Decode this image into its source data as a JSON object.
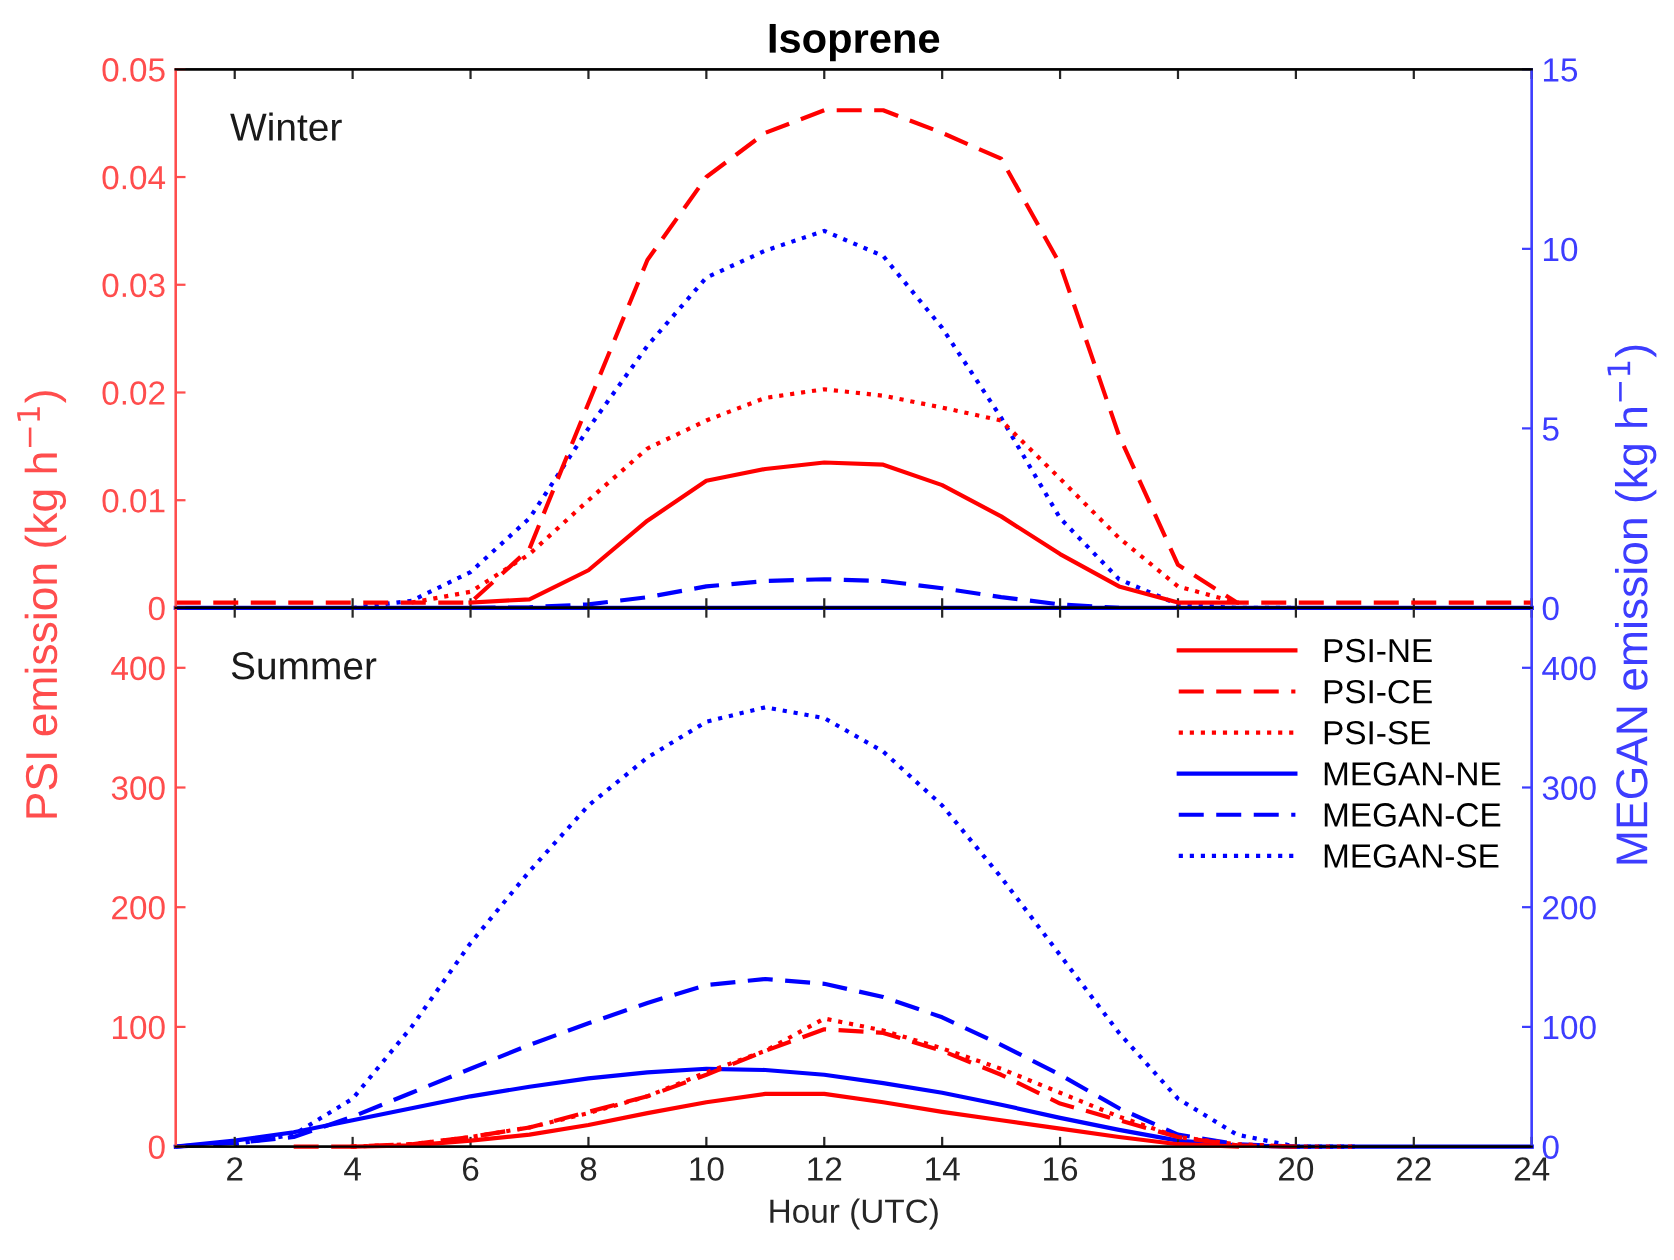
{
  "chart_data": [
    {
      "type": "line",
      "title": "Isoprene",
      "ylabel": "PSI emission (kg h$^{−1}$)",
      "y2label": "MEGAN emission (kg h$^{−1}$)",
      "annotations": [
        "Winter"
      ],
      "x": [
        1,
        2,
        3,
        4,
        5,
        6,
        7,
        8,
        9,
        10,
        11,
        12,
        13,
        14,
        15,
        16,
        17,
        18,
        19,
        20,
        21,
        22,
        23,
        24
      ],
      "xlim": [
        1,
        24
      ],
      "xticks": [
        2,
        4,
        6,
        8,
        10,
        12,
        14,
        16,
        18,
        20,
        22,
        24
      ],
      "ylim": [
        0,
        0.05
      ],
      "yticks": [
        0,
        0.01,
        0.02,
        0.03,
        0.04,
        0.05
      ],
      "y2lim": [
        0,
        15
      ],
      "y2ticks": [
        0,
        5,
        10,
        15
      ],
      "tick_labels": "y",
      "grid": false,
      "legend": false,
      "series": [
        {
          "color": "#ff0000",
          "line_style": "solid",
          "values": [
            null,
            null,
            null,
            null,
            null,
            0.0005,
            0.0008,
            0.0035,
            0.0081,
            0.0118,
            0.0129,
            0.0135,
            0.0133,
            0.0114,
            0.0085,
            0.005,
            0.002,
            0.0005,
            0.0005,
            null,
            null,
            null,
            null,
            null
          ]
        },
        {
          "color": "#ff0000",
          "line_style": "dashed",
          "values": [
            0.0005,
            0.0005,
            0.0005,
            0.0005,
            0.0005,
            0.0005,
            0.0055,
            0.019,
            0.0323,
            0.04,
            0.0441,
            0.0462,
            0.0462,
            0.0441,
            0.0417,
            0.0319,
            0.016,
            0.004,
            0.0005,
            0.0005,
            0.0005,
            0.0005,
            0.0005,
            0.0005
          ]
        },
        {
          "color": "#ff0000",
          "line_style": "dotted",
          "values": [
            null,
            null,
            null,
            null,
            0.0005,
            0.0015,
            0.005,
            0.01,
            0.0148,
            0.0174,
            0.0195,
            0.0203,
            0.0197,
            0.0186,
            0.0174,
            0.012,
            0.0065,
            0.002,
            0.0005,
            null,
            null,
            null,
            null,
            null
          ]
        },
        {
          "color": "#0000ff",
          "line_style": "solid",
          "axis": "y2",
          "values": [
            0,
            0,
            0,
            0,
            0,
            0,
            0,
            0,
            0,
            0,
            0,
            0,
            0,
            0,
            0,
            0,
            0,
            0,
            0,
            0,
            0,
            0,
            0,
            0
          ]
        },
        {
          "color": "#0000ff",
          "line_style": "dashed",
          "axis": "y2",
          "values": [
            null,
            null,
            null,
            null,
            null,
            0,
            0.02,
            0.1,
            0.3,
            0.6,
            0.75,
            0.8,
            0.75,
            0.55,
            0.3,
            0.1,
            0,
            null,
            null,
            null,
            null,
            null,
            null,
            null
          ]
        },
        {
          "color": "#0000ff",
          "line_style": "dotted",
          "axis": "y2",
          "values": [
            null,
            null,
            null,
            0,
            0.2,
            1.0,
            2.5,
            5.0,
            7.3,
            9.2,
            9.95,
            10.5,
            9.8,
            7.8,
            5.3,
            2.5,
            0.8,
            0.1,
            0,
            0,
            null,
            null,
            null,
            null
          ]
        }
      ]
    },
    {
      "type": "line",
      "xlabel": "Hour (UTC)",
      "annotations": [
        "Summer"
      ],
      "x": [
        1,
        2,
        3,
        4,
        5,
        6,
        7,
        8,
        9,
        10,
        11,
        12,
        13,
        14,
        15,
        16,
        17,
        18,
        19,
        20,
        21,
        22,
        23,
        24
      ],
      "xlim": [
        1,
        24
      ],
      "xticks": [
        2,
        4,
        6,
        8,
        10,
        12,
        14,
        16,
        18,
        20,
        22,
        24
      ],
      "ylim": [
        0,
        450
      ],
      "yticks": [
        0,
        100,
        200,
        300,
        400
      ],
      "y2lim": [
        0,
        450
      ],
      "y2ticks": [
        0,
        100,
        200,
        300,
        400
      ],
      "grid": false,
      "legend": "top right",
      "series": [
        {
          "name": "PSI-NE",
          "color": "#ff0000",
          "line_style": "solid",
          "values": [
            null,
            null,
            null,
            0,
            1,
            5,
            10,
            18,
            28,
            37,
            44,
            44,
            37,
            29,
            22,
            15,
            8,
            2,
            0,
            null,
            null,
            null,
            null,
            null
          ]
        },
        {
          "name": "PSI-CE",
          "color": "#ff0000",
          "line_style": "dashed",
          "values": [
            null,
            null,
            0,
            0,
            2,
            8,
            16,
            29,
            42,
            60,
            80,
            98,
            95,
            80,
            60,
            36,
            22,
            8,
            1,
            0,
            null,
            null,
            null,
            null
          ]
        },
        {
          "name": "PSI-SE",
          "color": "#ff0000",
          "line_style": "dotted",
          "values": [
            null,
            null,
            null,
            0,
            2,
            8,
            16,
            28,
            42,
            62,
            80,
            107,
            97,
            82,
            65,
            45,
            25,
            8,
            2,
            0,
            0,
            null,
            null,
            null
          ]
        },
        {
          "name": "MEGAN-NE",
          "color": "#0000ff",
          "line_style": "solid",
          "axis": "y2",
          "values": [
            0,
            5,
            12,
            22,
            32,
            42,
            50,
            57,
            62,
            65,
            64,
            60,
            53,
            45,
            35,
            24,
            14,
            5,
            1,
            0,
            0,
            0,
            0,
            0
          ]
        },
        {
          "name": "MEGAN-CE",
          "color": "#0000ff",
          "line_style": "dashed",
          "axis": "y2",
          "values": [
            0,
            3,
            8,
            25,
            45,
            65,
            85,
            103,
            120,
            135,
            140,
            136,
            125,
            108,
            85,
            60,
            32,
            10,
            2,
            0,
            null,
            null,
            null,
            null
          ]
        },
        {
          "name": "MEGAN-SE",
          "color": "#0000ff",
          "line_style": "dotted",
          "axis": "y2",
          "values": [
            null,
            2,
            10,
            40,
            100,
            170,
            230,
            285,
            325,
            355,
            367,
            358,
            330,
            285,
            225,
            160,
            95,
            40,
            10,
            0,
            0,
            null,
            null,
            null
          ]
        }
      ]
    }
  ]
}
